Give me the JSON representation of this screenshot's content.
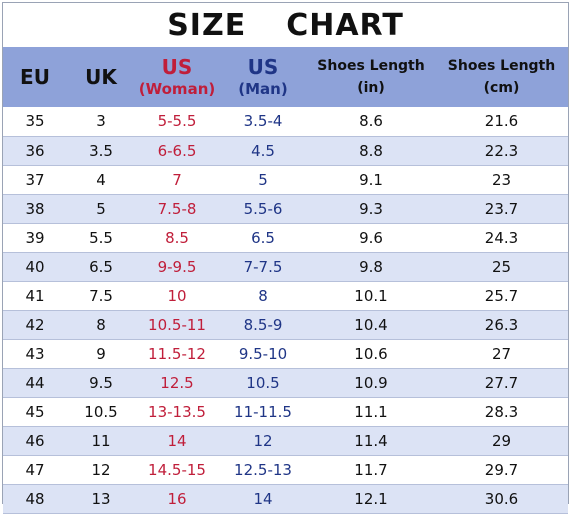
{
  "title": {
    "word1": "SIZE",
    "word2": "CHART"
  },
  "headers": {
    "eu": "EU",
    "uk": "UK",
    "us_woman": {
      "line1": "US",
      "line2": "(Woman)"
    },
    "us_man": {
      "line1": "US",
      "line2": "(Man)"
    },
    "length_in": {
      "line1": "Shoes Length",
      "line2": "(in)"
    },
    "length_cm": {
      "line1": "Shoes Length",
      "line2": "(cm)"
    }
  },
  "colors": {
    "header_bg": "#8ea2d9",
    "stripe": "#dce3f5",
    "woman": "#c01e3a",
    "man": "#1f3586"
  },
  "rows": [
    [
      "35",
      "3",
      "5-5.5",
      "3.5-4",
      "8.6",
      "21.6"
    ],
    [
      "36",
      "3.5",
      "6-6.5",
      "4.5",
      "8.8",
      "22.3"
    ],
    [
      "37",
      "4",
      "7",
      "5",
      "9.1",
      "23"
    ],
    [
      "38",
      "5",
      "7.5-8",
      "5.5-6",
      "9.3",
      "23.7"
    ],
    [
      "39",
      "5.5",
      "8.5",
      "6.5",
      "9.6",
      "24.3"
    ],
    [
      "40",
      "6.5",
      "9-9.5",
      "7-7.5",
      "9.8",
      "25"
    ],
    [
      "41",
      "7.5",
      "10",
      "8",
      "10.1",
      "25.7"
    ],
    [
      "42",
      "8",
      "10.5-11",
      "8.5-9",
      "10.4",
      "26.3"
    ],
    [
      "43",
      "9",
      "11.5-12",
      "9.5-10",
      "10.6",
      "27"
    ],
    [
      "44",
      "9.5",
      "12.5",
      "10.5",
      "10.9",
      "27.7"
    ],
    [
      "45",
      "10.5",
      "13-13.5",
      "11-11.5",
      "11.1",
      "28.3"
    ],
    [
      "46",
      "11",
      "14",
      "12",
      "11.4",
      "29"
    ],
    [
      "47",
      "12",
      "14.5-15",
      "12.5-13",
      "11.7",
      "29.7"
    ],
    [
      "48",
      "13",
      "16",
      "14",
      "12.1",
      "30.6"
    ]
  ]
}
